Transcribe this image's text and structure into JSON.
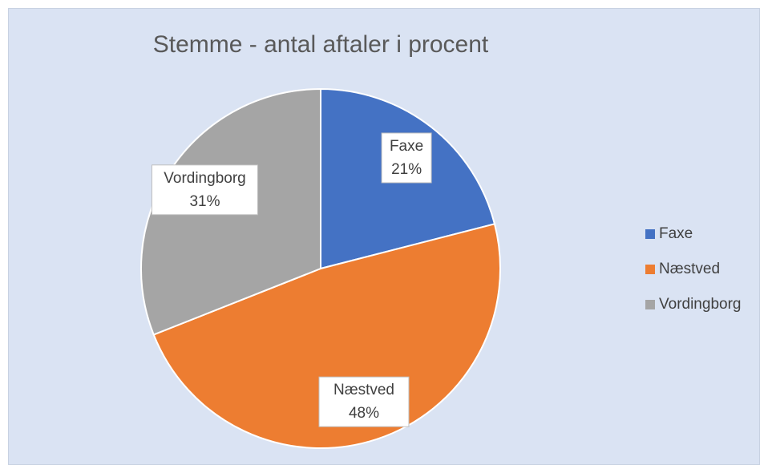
{
  "chart_data": {
    "type": "pie",
    "title": "Stemme - antal aftaler i procent",
    "categories": [
      "Faxe",
      "Næstved",
      "Vordingborg"
    ],
    "values": [
      21,
      48,
      31
    ],
    "value_labels": [
      "21%",
      "48%",
      "31%"
    ],
    "colors": [
      "#4472c4",
      "#ed7d31",
      "#a5a5a5"
    ],
    "legend": "right"
  }
}
